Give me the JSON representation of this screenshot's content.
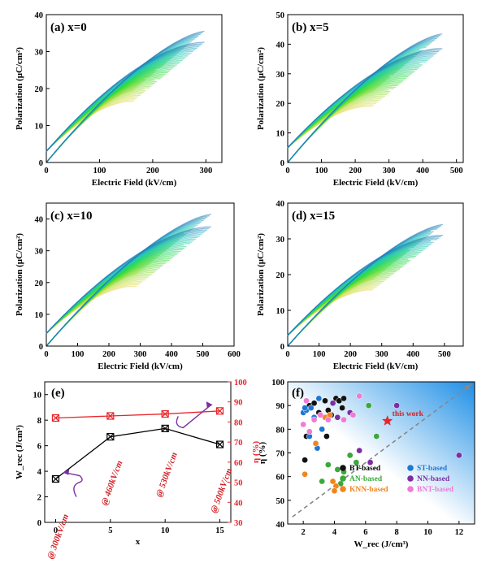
{
  "panels": [
    {
      "label": "(a) x=0",
      "type": "line",
      "xlabel": "Electric Field (kV/cm)",
      "ylabel": "Polarization (μC/cm²)",
      "xlim": [
        0,
        330
      ],
      "ylim": [
        0,
        40
      ],
      "xticks": [
        "0",
        "100",
        "200",
        "300"
      ],
      "xtick_vals": [
        0,
        100,
        200,
        300
      ],
      "yticks": [
        "0",
        "10",
        "20",
        "30",
        "40"
      ],
      "ytick_vals": [
        0,
        10,
        20,
        30,
        40
      ],
      "emax": 297,
      "pmax": 35.5,
      "p0": 3
    },
    {
      "label": "(b) x=5",
      "type": "line",
      "xlabel": "Electric Field (kV/cm)",
      "ylabel": "Polarization (μC/cm²)",
      "xlim": [
        0,
        520
      ],
      "ylim": [
        0,
        50
      ],
      "xticks": [
        "0",
        "100",
        "200",
        "300",
        "400",
        "500"
      ],
      "xtick_vals": [
        0,
        100,
        200,
        300,
        400,
        500
      ],
      "yticks": [
        "0",
        "10",
        "20",
        "30",
        "40",
        "50"
      ],
      "ytick_vals": [
        0,
        10,
        20,
        30,
        40,
        50
      ],
      "emax": 458,
      "pmax": 43.5,
      "p0": 5
    },
    {
      "label": "(c) x=10",
      "type": "line",
      "xlabel": "Electric Field (kV/cm)",
      "ylabel": "Polarization (μC/cm²)",
      "xlim": [
        0,
        600
      ],
      "ylim": [
        0,
        45
      ],
      "xticks": [
        "0",
        "100",
        "200",
        "300",
        "400",
        "500",
        "600"
      ],
      "xtick_vals": [
        0,
        100,
        200,
        300,
        400,
        500,
        600
      ],
      "yticks": [
        "0",
        "10",
        "20",
        "30",
        "40"
      ],
      "ytick_vals": [
        0,
        10,
        20,
        30,
        40
      ],
      "emax": 527,
      "pmax": 41.5,
      "p0": 4
    },
    {
      "label": "(d) x=15",
      "type": "line",
      "xlabel": "Electric Field (kV/cm)",
      "ylabel": "Polarization (μC/cm²)",
      "xlim": [
        0,
        560
      ],
      "ylim": [
        0,
        40
      ],
      "xticks": [
        "0",
        "100",
        "200",
        "300",
        "400",
        "500"
      ],
      "xtick_vals": [
        0,
        100,
        200,
        300,
        400,
        500
      ],
      "yticks": [
        "0",
        "10",
        "20",
        "30",
        "40"
      ],
      "ytick_vals": [
        0,
        10,
        20,
        30,
        40
      ],
      "emax": 495,
      "pmax": 34,
      "p0": 3
    }
  ],
  "chart_data": [
    {
      "type": "line",
      "title": "(e)",
      "xlabel": "x",
      "ylabel": "W_rec (J/cm³)",
      "y2label": "η (%)",
      "xlim": [
        -1,
        16
      ],
      "ylim": [
        0,
        11
      ],
      "y2lim": [
        30,
        100
      ],
      "xticks": [
        "0",
        "5",
        "10",
        "15"
      ],
      "xtick_vals": [
        0,
        5,
        10,
        15
      ],
      "yticks": [
        "0",
        "2",
        "4",
        "6",
        "8",
        "10"
      ],
      "ytick_vals": [
        0,
        2,
        4,
        6,
        8,
        10
      ],
      "y2ticks": [
        "30",
        "40",
        "50",
        "60",
        "70",
        "80",
        "90",
        "100"
      ],
      "y2tick_vals": [
        30,
        40,
        50,
        60,
        70,
        80,
        90,
        100
      ],
      "x": [
        0,
        5,
        10,
        15
      ],
      "series": [
        {
          "values": [
            3.4,
            6.7,
            7.35,
            6.1
          ],
          "color": "#000000",
          "axis": "left"
        },
        {
          "values": [
            82,
            83,
            84,
            85.5
          ],
          "color": "#e8252a",
          "axis": "right"
        }
      ],
      "annotations": [
        "@ 300kV/cm",
        "@ 460kV/cm",
        "@ 530kV/cm",
        "@ 500kV/cm"
      ]
    },
    {
      "type": "scatter",
      "title": "(f)",
      "xlabel": "W_rec (J/cm³)",
      "ylabel": "η (%)",
      "xlim": [
        1,
        13
      ],
      "ylim": [
        40,
        100
      ],
      "xticks": [
        "2",
        "4",
        "6",
        "8",
        "10",
        "12"
      ],
      "xtick_vals": [
        2,
        4,
        6,
        8,
        10,
        12
      ],
      "yticks": [
        "40",
        "50",
        "60",
        "70",
        "80",
        "90",
        "100"
      ],
      "ytick_vals": [
        40,
        50,
        60,
        70,
        80,
        90,
        100
      ],
      "legend": [
        {
          "name": "BT-based",
          "color": "#111111"
        },
        {
          "name": "ST-based",
          "color": "#1f77d4"
        },
        {
          "name": "AN-based",
          "color": "#3aa83a"
        },
        {
          "name": "NN-based",
          "color": "#7b2fa3"
        },
        {
          "name": "KNN-based",
          "color": "#f2841c"
        },
        {
          "name": "BNT-based",
          "color": "#f07ad6"
        }
      ],
      "series": [
        {
          "name": "BT-based",
          "points": [
            [
              2.2,
              77
            ],
            [
              2.4,
              90
            ],
            [
              2.7,
              91
            ],
            [
              3,
              87
            ],
            [
              3.4,
              92
            ],
            [
              3.6,
              88
            ],
            [
              3.8,
              86
            ],
            [
              4.1,
              93
            ],
            [
              4.3,
              92
            ],
            [
              4.5,
              89
            ],
            [
              4.6,
              93
            ],
            [
              2.1,
              67
            ],
            [
              3.5,
              77
            ]
          ]
        },
        {
          "name": "ST-based",
          "points": [
            [
              2,
              87
            ],
            [
              2.2,
              88
            ],
            [
              2.5,
              89
            ],
            [
              2.7,
              85
            ],
            [
              3,
              93
            ],
            [
              2.4,
              77
            ],
            [
              2.9,
              72
            ],
            [
              3.2,
              80
            ],
            [
              2.1,
              89
            ]
          ]
        },
        {
          "name": "AN-based",
          "points": [
            [
              3.6,
              65
            ],
            [
              4.2,
              63
            ],
            [
              4.4,
              57
            ],
            [
              5,
              69
            ],
            [
              5.4,
              66
            ],
            [
              6.2,
              90
            ],
            [
              6.7,
              77
            ],
            [
              3.2,
              58
            ],
            [
              4.6,
              62
            ]
          ]
        },
        {
          "name": "NN-based",
          "points": [
            [
              4.2,
              85
            ],
            [
              5,
              87
            ],
            [
              5.6,
              71
            ],
            [
              6.3,
              66
            ],
            [
              8,
              90
            ],
            [
              12,
              69
            ],
            [
              3.9,
              91
            ]
          ]
        },
        {
          "name": "KNN-based",
          "points": [
            [
              2.1,
              61
            ],
            [
              2.8,
              74
            ],
            [
              3.4,
              85
            ],
            [
              3.7,
              86
            ],
            [
              4.1,
              56
            ],
            [
              4,
              54
            ],
            [
              3.9,
              58
            ]
          ]
        },
        {
          "name": "BNT-based",
          "points": [
            [
              2,
              82
            ],
            [
              2.4,
              79
            ],
            [
              2.7,
              84
            ],
            [
              3.1,
              86
            ],
            [
              3.6,
              84
            ],
            [
              4.6,
              84
            ],
            [
              5.6,
              94
            ],
            [
              2.2,
              92
            ],
            [
              5.2,
              86
            ]
          ]
        }
      ],
      "highlight": {
        "label": "this work",
        "x": 7.4,
        "y": 83.5,
        "color": "#e8252a"
      }
    }
  ]
}
